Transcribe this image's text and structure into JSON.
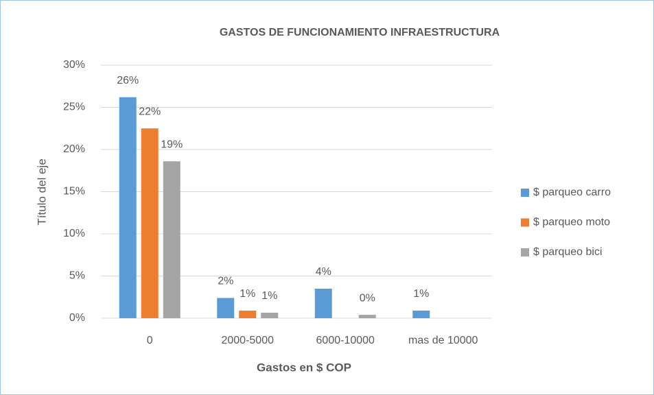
{
  "chart_data": {
    "type": "bar",
    "title": "GASTOS DE FUNCIONAMIENTO INFRAESTRUCTURA",
    "x_label": "Gastos en $ COP",
    "y_label": "Título del eje",
    "categories": [
      "0",
      "2000-5000",
      "6000-10000",
      "mas de 10000"
    ],
    "series": [
      {
        "name": "$ parqueo carro",
        "color": "#5b9bd5",
        "values": [
          26.2,
          2.4,
          3.5,
          0.9
        ],
        "value_labels": [
          "26%",
          "2%",
          "4%",
          "1%"
        ]
      },
      {
        "name": "$ parqueo moto",
        "color": "#ed7d31",
        "values": [
          22.5,
          0.9,
          null,
          null
        ],
        "value_labels": [
          "22%",
          "1%",
          null,
          null
        ]
      },
      {
        "name": "$ parqueo bici",
        "color": "#a5a5a5",
        "values": [
          18.6,
          0.65,
          0.4,
          null
        ],
        "value_labels": [
          "19%",
          "1%",
          "0%",
          null
        ]
      }
    ],
    "ylim": [
      0,
      30
    ],
    "yticks": [
      {
        "value": 0,
        "label": "0%"
      },
      {
        "value": 5,
        "label": "5%"
      },
      {
        "value": 10,
        "label": "10%"
      },
      {
        "value": 15,
        "label": "15%"
      },
      {
        "value": 20,
        "label": "20%"
      },
      {
        "value": 25,
        "label": "25%"
      },
      {
        "value": 30,
        "label": "30%"
      }
    ],
    "grid": true,
    "legend": "right"
  }
}
